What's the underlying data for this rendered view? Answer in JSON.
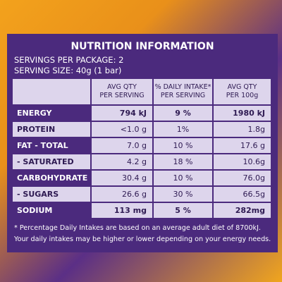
{
  "header": {
    "title": "NUTRITION INFORMATION",
    "servings_per_package": "SERVINGS PER PACKAGE: 2",
    "serving_size": "SERVING SIZE: 40g (1 bar)"
  },
  "table": {
    "columns": [
      [
        "AVG QTY",
        "PER SERVING"
      ],
      [
        "% DAILY INTAKE*",
        "PER SERVING"
      ],
      [
        "AVG QTY",
        "PER 100g"
      ]
    ],
    "rows": [
      [
        "ENERGY",
        "794 kJ",
        "9 %",
        "1980 kJ"
      ],
      [
        "PROTEIN",
        "<1.0 g",
        "1%",
        "1.8g"
      ],
      [
        "FAT - TOTAL",
        "7.0 g",
        "10 %",
        "17.6 g"
      ],
      [
        "- SATURATED",
        "4.2 g",
        "18 %",
        "10.6g"
      ],
      [
        "CARBOHYDRATE",
        "30.4 g",
        "10 %",
        "76.0g"
      ],
      [
        "- SUGARS",
        "26.6 g",
        "30 %",
        "66.5g"
      ],
      [
        "SODIUM",
        "113 mg",
        "5 %",
        "282mg"
      ]
    ]
  },
  "footnote": [
    "* Percentage Daily Intakes are based on an average adult diet of 8700kJ.",
    "Your daily intakes may be higher or lower depending on your energy needs."
  ]
}
